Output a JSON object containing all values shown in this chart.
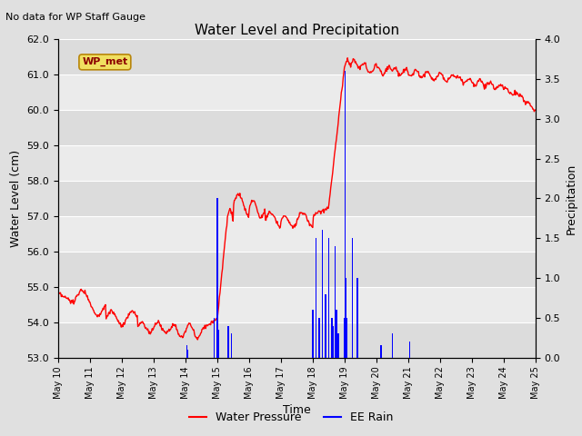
{
  "title": "Water Level and Precipitation",
  "subtitle": "No data for WP Staff Gauge",
  "xlabel": "Time",
  "ylabel_left": "Water Level (cm)",
  "ylabel_right": "Precipitation",
  "ylim_left": [
    53.0,
    62.0
  ],
  "ylim_right": [
    0.0,
    4.0
  ],
  "yticks_left": [
    53.0,
    54.0,
    55.0,
    56.0,
    57.0,
    58.0,
    59.0,
    60.0,
    61.0,
    62.0
  ],
  "yticks_right": [
    0.0,
    0.5,
    1.0,
    1.5,
    2.0,
    2.5,
    3.0,
    3.5,
    4.0
  ],
  "xtick_labels": [
    "May 10",
    "May 11",
    "May 12",
    "May 13",
    "May 14",
    "May 15",
    "May 16",
    "May 17",
    "May 18",
    "May 19",
    "May 20",
    "May 21",
    "May 22",
    "May 23",
    "May 24",
    "May 25"
  ],
  "wp_met_label": "WP_met",
  "legend_entries": [
    "Water Pressure",
    "EE Rain"
  ],
  "band_colors": [
    "#dcdcdc",
    "#ebebeb"
  ],
  "line_color": "red",
  "bar_color": "blue",
  "bg_color": "#e0e0e0",
  "title_fontsize": 11,
  "label_fontsize": 9,
  "tick_fontsize": 8,
  "xtick_fontsize": 7
}
